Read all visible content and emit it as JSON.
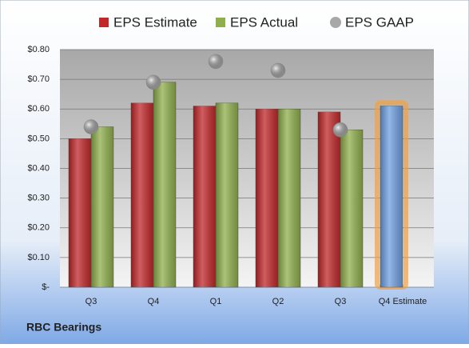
{
  "chart_data": {
    "type": "bar",
    "title": "RBC Bearings",
    "categories": [
      "Q3",
      "Q4",
      "Q1",
      "Q2",
      "Q3",
      "Q4 Estimate"
    ],
    "series": [
      {
        "name": "EPS Estimate",
        "type": "bar",
        "color": "#c0282a",
        "colors": [
          "#c0282a",
          "#c0282a",
          "#c0282a",
          "#c0282a",
          "#c0282a",
          "#6f9fe0"
        ],
        "values": [
          0.5,
          0.62,
          0.61,
          0.6,
          0.59,
          0.61
        ]
      },
      {
        "name": "EPS Actual",
        "type": "bar",
        "color": "#8fae4c",
        "values": [
          0.54,
          0.69,
          0.62,
          0.6,
          0.53,
          null
        ]
      },
      {
        "name": "EPS GAAP",
        "type": "scatter",
        "color": "#a8a8a8",
        "values": [
          0.54,
          0.69,
          0.76,
          0.73,
          0.53,
          null
        ]
      }
    ],
    "ylim": [
      0,
      0.8
    ],
    "yticks": [
      {
        "value": 0,
        "label": "$-"
      },
      {
        "value": 0.1,
        "label": "$0.10"
      },
      {
        "value": 0.2,
        "label": "$0.20"
      },
      {
        "value": 0.3,
        "label": "$0.30"
      },
      {
        "value": 0.4,
        "label": "$0.40"
      },
      {
        "value": 0.5,
        "label": "$0.50"
      },
      {
        "value": 0.6,
        "label": "$0.60"
      },
      {
        "value": 0.7,
        "label": "$0.70"
      },
      {
        "value": 0.8,
        "label": "$0.80"
      }
    ],
    "grid": true
  }
}
